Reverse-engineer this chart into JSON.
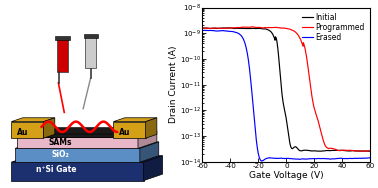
{
  "xlabel": "Gate Voltage (V)",
  "ylabel": "Drain Current (A)",
  "xlim": [
    -60,
    60
  ],
  "ylim_log": [
    -14,
    -8
  ],
  "xticks": [
    -60,
    -40,
    -20,
    0,
    20,
    40,
    60
  ],
  "legend": [
    "Initial",
    "Programmed",
    "Erased"
  ],
  "colors": [
    "black",
    "red",
    "blue"
  ],
  "background": "#ffffff",
  "schematic": {
    "gate_color": "#1c2f6e",
    "sio2_color": "#5b8ec4",
    "sams_color": "#e8b8c8",
    "au_color": "#d4a017",
    "channel_color": "#1a1a1a",
    "fiber_color": "red",
    "syringe1_color": "#cc0000",
    "syringe2_color": "#c8c8c8"
  }
}
